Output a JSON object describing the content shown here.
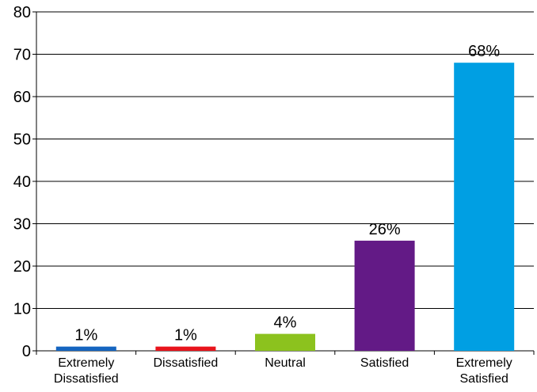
{
  "chart_data": {
    "type": "bar",
    "title": "",
    "xlabel": "",
    "ylabel": "",
    "ylim": [
      0,
      80
    ],
    "yticks": [
      0,
      10,
      20,
      30,
      40,
      50,
      60,
      70,
      80
    ],
    "grid": true,
    "legend": "none",
    "categories": [
      [
        "Extremely",
        "Dissatisfied"
      ],
      [
        "Dissatisfied"
      ],
      [
        "Neutral"
      ],
      [
        "Satisfied"
      ],
      [
        "Extremely",
        "Satisfied"
      ]
    ],
    "values": [
      1,
      1,
      4,
      26,
      68
    ],
    "value_labels": [
      "1%",
      "1%",
      "4%",
      "26%",
      "68%"
    ],
    "colors": [
      "#1565c0",
      "#e8141c",
      "#8cc21e",
      "#631a86",
      "#009fe3"
    ]
  }
}
